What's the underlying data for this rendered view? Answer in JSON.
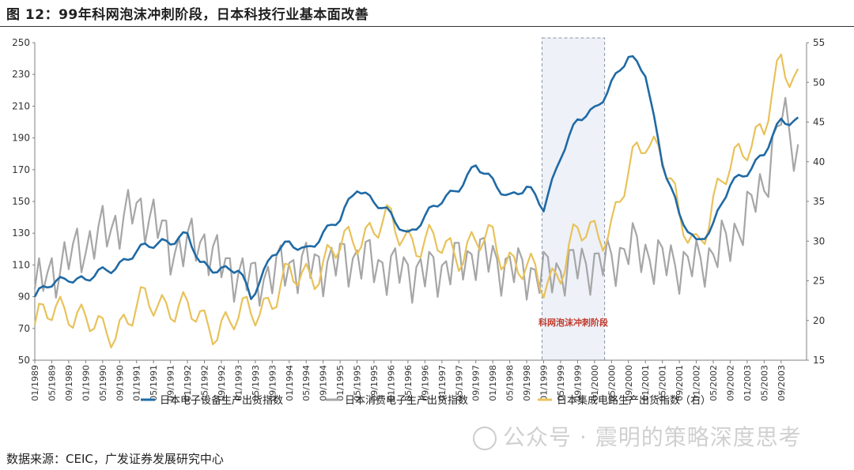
{
  "title": "图 12：99年科网泡沫冲刺阶段，日本科技行业基本面改善",
  "source": "数据来源：CEIC，广发证券发展研究中心",
  "watermark": "公众号 · 震明的策略深度思考",
  "chart_data": {
    "type": "line",
    "title": "",
    "xlabel": "",
    "ylabel": "",
    "ylim": [
      50,
      250
    ],
    "y_ticks": [
      50,
      70,
      90,
      110,
      130,
      150,
      170,
      190,
      210,
      230,
      250
    ],
    "y2lim": [
      15,
      55
    ],
    "y2_ticks": [
      15,
      20,
      25,
      30,
      35,
      40,
      45,
      50,
      55
    ],
    "x_tick_labels": [
      "01/1989",
      "05/1989",
      "09/1989",
      "01/1990",
      "05/1990",
      "09/1990",
      "01/1991",
      "05/1991",
      "09/1991",
      "01/1992",
      "05/1992",
      "09/1992",
      "01/1993",
      "05/1993",
      "09/1993",
      "01/1994",
      "05/1994",
      "09/1994",
      "01/1995",
      "05/1995",
      "09/1995",
      "01/1996",
      "05/1996",
      "09/1996",
      "01/1997",
      "05/1997",
      "09/1997",
      "01/1998",
      "05/1998",
      "09/1998",
      "01/1999",
      "05/1999",
      "09/1999",
      "01/2000",
      "05/2000",
      "09/2000",
      "01/2001",
      "05/2001",
      "09/2001",
      "01/2002",
      "05/2002",
      "09/2002",
      "01/2003",
      "05/2003",
      "09/2003"
    ],
    "grid": false,
    "legend_position": "bottom",
    "shaded_region": {
      "from": "01/1999",
      "to": "03/2000",
      "label": "科网泡沫冲刺阶段"
    },
    "series": [
      {
        "name": "日本电子设备生产出货指数",
        "axis": "left",
        "color": "#1f6aa5",
        "anchors": [
          [
            "01/1989",
            90
          ],
          [
            "04/1989",
            96
          ],
          [
            "09/1989",
            103
          ],
          [
            "01/1990",
            100
          ],
          [
            "07/1990",
            108
          ],
          [
            "01/1991",
            118
          ],
          [
            "07/1991",
            125
          ],
          [
            "01/1992",
            128
          ],
          [
            "04/1992",
            110
          ],
          [
            "09/1992",
            108
          ],
          [
            "01/1993",
            106
          ],
          [
            "04/1993",
            89
          ],
          [
            "09/1993",
            118
          ],
          [
            "01/1994",
            122
          ],
          [
            "05/1994",
            120
          ],
          [
            "09/1994",
            130
          ],
          [
            "01/1995",
            138
          ],
          [
            "05/1995",
            160
          ],
          [
            "09/1995",
            150
          ],
          [
            "01/1996",
            140
          ],
          [
            "05/1996",
            130
          ],
          [
            "09/1996",
            140
          ],
          [
            "01/1997",
            150
          ],
          [
            "05/1997",
            160
          ],
          [
            "09/1997",
            172
          ],
          [
            "01/1998",
            162
          ],
          [
            "05/1998",
            154
          ],
          [
            "09/1998",
            158
          ],
          [
            "01/1999",
            146
          ],
          [
            "05/1999",
            180
          ],
          [
            "09/1999",
            200
          ],
          [
            "01/2000",
            208
          ],
          [
            "05/2000",
            225
          ],
          [
            "09/2000",
            240
          ],
          [
            "01/2001",
            232
          ],
          [
            "05/2001",
            175
          ],
          [
            "09/2001",
            140
          ],
          [
            "01/2002",
            125
          ],
          [
            "05/2002",
            135
          ],
          [
            "09/2002",
            160
          ],
          [
            "01/2003",
            170
          ],
          [
            "05/2003",
            180
          ],
          [
            "09/2003",
            200
          ],
          [
            "01/2004",
            202
          ]
        ]
      },
      {
        "name": "日本消费电子生产出货指数",
        "axis": "left",
        "color": "#a6a6a6",
        "anchors": [
          [
            "01/1989",
            95
          ],
          [
            "09/1989",
            115
          ],
          [
            "05/1990",
            130
          ],
          [
            "01/1991",
            145
          ],
          [
            "05/1991",
            140
          ],
          [
            "09/1991",
            120
          ],
          [
            "05/1992",
            125
          ],
          [
            "09/1992",
            110
          ],
          [
            "05/1993",
            100
          ],
          [
            "01/1994",
            110
          ],
          [
            "09/1994",
            110
          ],
          [
            "05/1995",
            115
          ],
          [
            "01/1996",
            108
          ],
          [
            "09/1996",
            105
          ],
          [
            "05/1997",
            112
          ],
          [
            "09/1997",
            118
          ],
          [
            "05/1998",
            108
          ],
          [
            "01/1999",
            104
          ],
          [
            "09/1999",
            110
          ],
          [
            "05/2000",
            112
          ],
          [
            "09/2000",
            122
          ],
          [
            "05/2001",
            112
          ],
          [
            "01/2002",
            110
          ],
          [
            "09/2002",
            125
          ],
          [
            "05/2003",
            160
          ],
          [
            "09/2003",
            205
          ],
          [
            "01/2004",
            180
          ]
        ]
      },
      {
        "name": "日本集成电路生产出货指数（右）",
        "axis": "right",
        "color": "#e8c25a",
        "anchors": [
          [
            "01/1989",
            19.5
          ],
          [
            "09/1989",
            22
          ],
          [
            "05/1990",
            18
          ],
          [
            "01/1991",
            21.5
          ],
          [
            "09/1991",
            22.5
          ],
          [
            "05/1992",
            19.5
          ],
          [
            "01/1993",
            20
          ],
          [
            "09/1993",
            23
          ],
          [
            "01/1994",
            25
          ],
          [
            "09/1994",
            27
          ],
          [
            "05/1995",
            31
          ],
          [
            "01/1996",
            32
          ],
          [
            "09/1996",
            29.5
          ],
          [
            "05/1997",
            29
          ],
          [
            "01/1998",
            30
          ],
          [
            "09/1998",
            26
          ],
          [
            "01/1999",
            24.5
          ],
          [
            "05/1999",
            27
          ],
          [
            "09/1999",
            30.5
          ],
          [
            "05/2000",
            32
          ],
          [
            "09/2000",
            38
          ],
          [
            "01/2001",
            43.5
          ],
          [
            "05/2001",
            41.5
          ],
          [
            "09/2001",
            32
          ],
          [
            "01/2002",
            30
          ],
          [
            "09/2002",
            39
          ],
          [
            "01/2003",
            43
          ],
          [
            "05/2003",
            44
          ],
          [
            "09/2003",
            52
          ],
          [
            "01/2004",
            51
          ]
        ]
      }
    ]
  }
}
